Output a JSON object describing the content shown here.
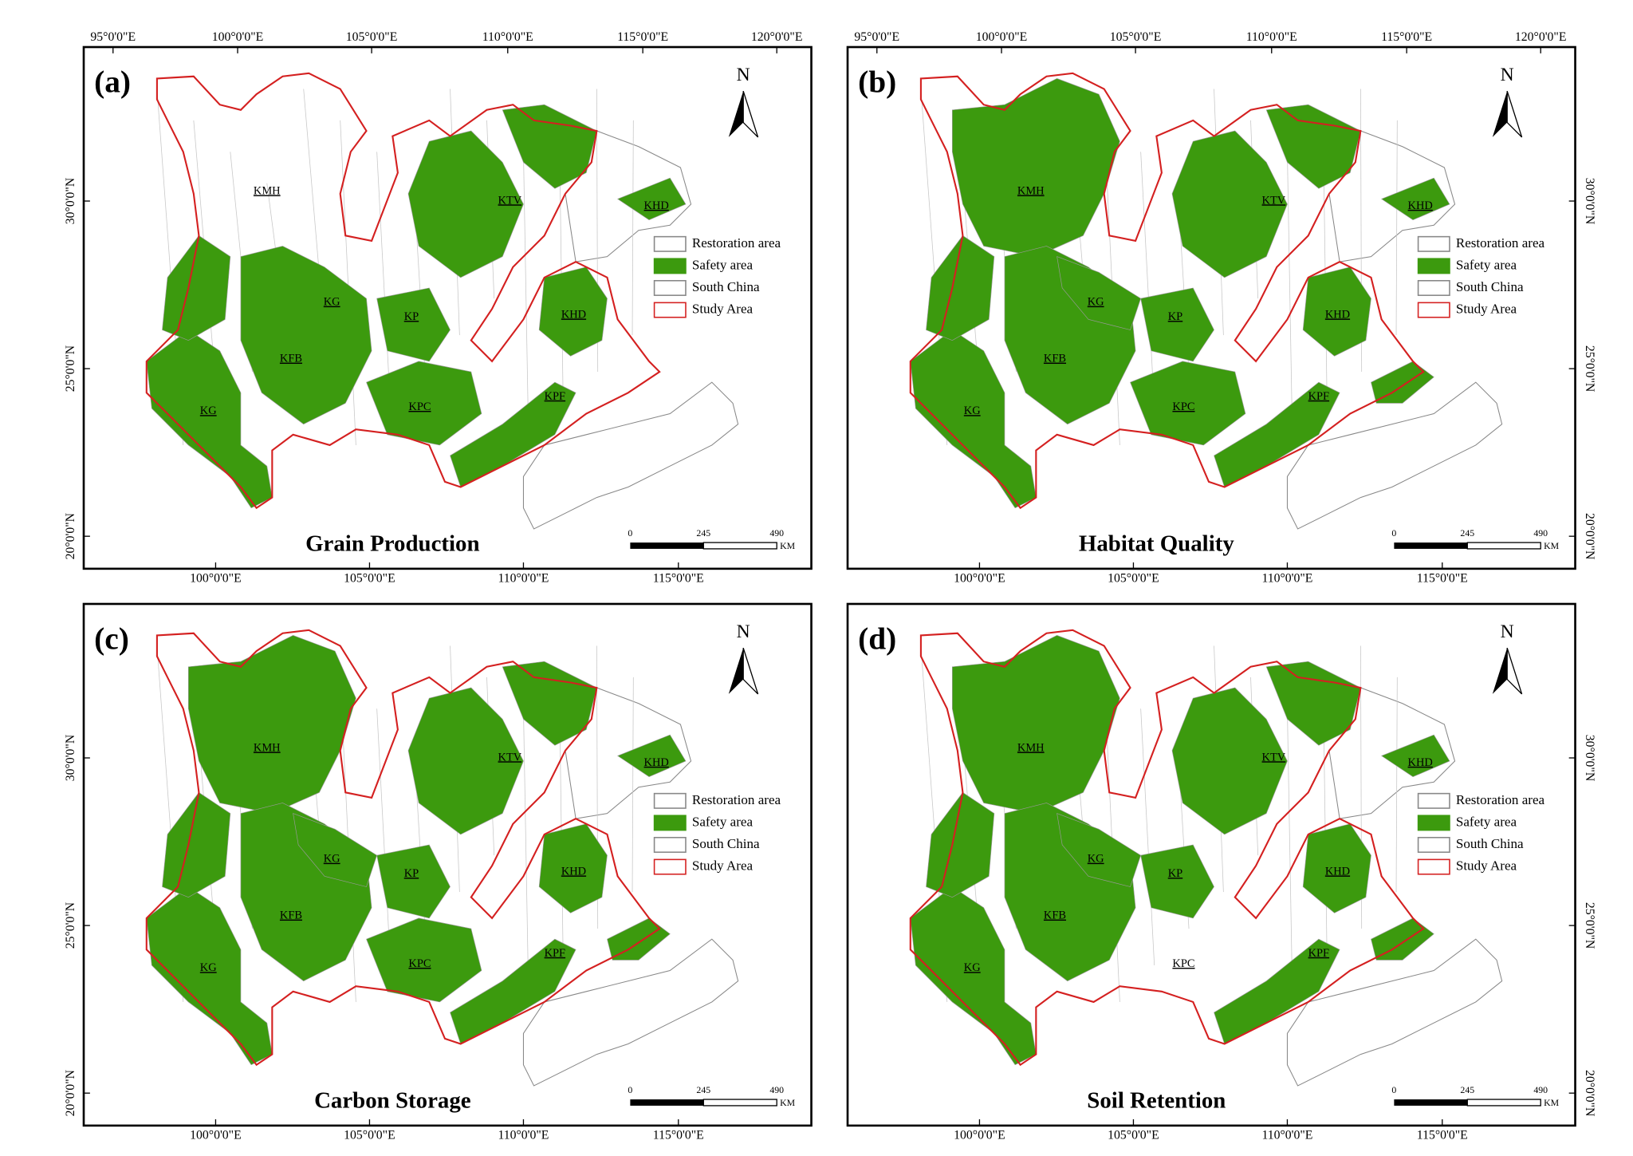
{
  "panels": [
    {
      "label": "(a)",
      "title": "Grain Production",
      "regions": [
        "KMH",
        "KTV",
        "KHD",
        "KG",
        "KP",
        "KHD",
        "KFB",
        "KG",
        "KPC",
        "KPF"
      ]
    },
    {
      "label": "(b)",
      "title": "Habitat Quality",
      "regions": [
        "KMH",
        "KTV",
        "KHD",
        "KG",
        "KP",
        "KHD",
        "KFB",
        "KG",
        "KPC",
        "KPF"
      ]
    },
    {
      "label": "(c)",
      "title": "Carbon Storage",
      "regions": [
        "KMH",
        "KTV",
        "KHD",
        "KG",
        "KP",
        "KHD",
        "KFB",
        "KG",
        "KPC",
        "KPF"
      ]
    },
    {
      "label": "(d)",
      "title": "Soil Retention",
      "regions": [
        "KMH",
        "KTV",
        "KHD",
        "KG",
        "KP",
        "KHD",
        "KFB",
        "KG",
        "KPC",
        "KPF"
      ]
    }
  ],
  "legend": [
    "Restoration area",
    "Safety area",
    "South China",
    "Study Area"
  ],
  "north": "N",
  "scale_bar": {
    "ticks": [
      "0",
      "245",
      "490"
    ],
    "unit": "KM"
  },
  "top_ticks": [
    "95°0'0\"E",
    "100°0'0\"E",
    "105°0'0\"E",
    "110°0'0\"E",
    "115°0'0\"E",
    "120°0'0\"E"
  ],
  "bottom_ticks": [
    "100°0'0\"E",
    "105°0'0\"E",
    "110°0'0\"E",
    "115°0'0\"E"
  ],
  "lat_ticks": [
    "30°0'0\"N",
    "25°0'0\"N",
    "20°0'0\"N"
  ]
}
